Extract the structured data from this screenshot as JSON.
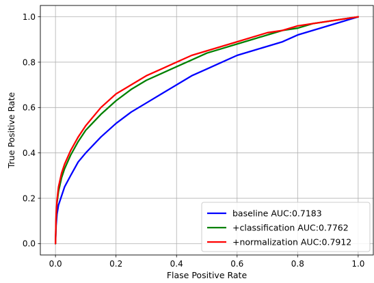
{
  "chart_data": {
    "type": "line",
    "title": "",
    "xlabel": "Flase Positive Rate",
    "ylabel": "True Positive Rate",
    "xlim": [
      -0.05,
      1.05
    ],
    "ylim": [
      -0.05,
      1.05
    ],
    "xticks": [
      0.0,
      0.2,
      0.4,
      0.6,
      0.8,
      1.0
    ],
    "yticks": [
      0.0,
      0.2,
      0.4,
      0.6,
      0.8,
      1.0
    ],
    "xtick_labels": [
      "0.0",
      "0.2",
      "0.4",
      "0.6",
      "0.8",
      "1.0"
    ],
    "ytick_labels": [
      "0.0",
      "0.2",
      "0.4",
      "0.6",
      "0.8",
      "1.0"
    ],
    "grid": true,
    "legend_position": "bottom-right",
    "series": [
      {
        "name": "baseline AUC:0.7183",
        "color": "#0000ff",
        "x": [
          0.0,
          0.002,
          0.005,
          0.01,
          0.02,
          0.03,
          0.05,
          0.075,
          0.1,
          0.15,
          0.2,
          0.25,
          0.3,
          0.35,
          0.4,
          0.45,
          0.5,
          0.55,
          0.6,
          0.65,
          0.7,
          0.75,
          0.8,
          0.85,
          0.9,
          0.95,
          1.0
        ],
        "y": [
          0.0,
          0.08,
          0.13,
          0.17,
          0.21,
          0.25,
          0.3,
          0.36,
          0.4,
          0.47,
          0.53,
          0.58,
          0.62,
          0.66,
          0.7,
          0.74,
          0.77,
          0.8,
          0.83,
          0.85,
          0.87,
          0.89,
          0.92,
          0.94,
          0.96,
          0.98,
          1.0
        ]
      },
      {
        "name": "+classification AUC:0.7762",
        "color": "#008000",
        "x": [
          0.0,
          0.002,
          0.005,
          0.01,
          0.02,
          0.03,
          0.05,
          0.075,
          0.1,
          0.15,
          0.2,
          0.25,
          0.3,
          0.35,
          0.4,
          0.45,
          0.5,
          0.55,
          0.6,
          0.65,
          0.7,
          0.75,
          0.8,
          0.85,
          0.9,
          0.95,
          1.0
        ],
        "y": [
          0.0,
          0.11,
          0.18,
          0.23,
          0.29,
          0.33,
          0.39,
          0.45,
          0.5,
          0.57,
          0.63,
          0.68,
          0.72,
          0.75,
          0.78,
          0.81,
          0.84,
          0.86,
          0.88,
          0.9,
          0.92,
          0.94,
          0.95,
          0.97,
          0.98,
          0.99,
          1.0
        ]
      },
      {
        "name": "+normalization AUC:0.7912",
        "color": "#ff0000",
        "x": [
          0.0,
          0.002,
          0.005,
          0.01,
          0.02,
          0.03,
          0.05,
          0.075,
          0.1,
          0.15,
          0.2,
          0.25,
          0.3,
          0.35,
          0.4,
          0.45,
          0.5,
          0.55,
          0.6,
          0.65,
          0.7,
          0.75,
          0.8,
          0.85,
          0.9,
          0.95,
          1.0
        ],
        "y": [
          0.0,
          0.12,
          0.19,
          0.25,
          0.31,
          0.35,
          0.41,
          0.47,
          0.52,
          0.6,
          0.66,
          0.7,
          0.74,
          0.77,
          0.8,
          0.83,
          0.85,
          0.87,
          0.89,
          0.91,
          0.93,
          0.94,
          0.96,
          0.97,
          0.98,
          0.99,
          1.0
        ]
      }
    ]
  }
}
